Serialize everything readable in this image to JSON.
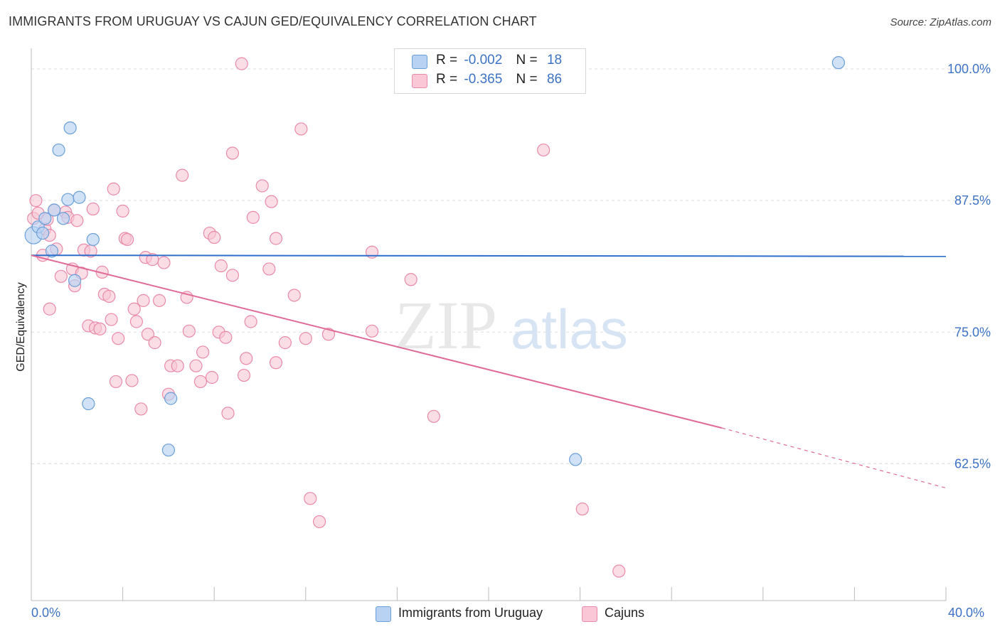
{
  "title": "IMMIGRANTS FROM URUGUAY VS CAJUN GED/EQUIVALENCY CORRELATION CHART",
  "source": "Source: ZipAtlas.com",
  "watermark": {
    "zip": "ZIP",
    "atlas": "atlas"
  },
  "legend": {
    "rows": [
      {
        "r_label": "R =",
        "r_value": "-0.002",
        "n_label": "N =",
        "n_value": "18"
      },
      {
        "r_label": "R =",
        "r_value": "-0.365",
        "n_label": "N =",
        "n_value": "86"
      }
    ]
  },
  "colors": {
    "uruguay_fill": "#b8d2f3",
    "uruguay_stroke": "#6a9fd8",
    "uruguay_line": "#2f6fcc",
    "cajun_fill": "#f9c7d6",
    "cajun_stroke": "#e98aa9",
    "cajun_line": "#e06a96",
    "axis_text": "#3d72c4",
    "grid": "#dedede"
  },
  "chart_data": {
    "type": "scatter",
    "title": "IMMIGRANTS FROM URUGUAY VS CAJUN GED/EQUIVALENCY CORRELATION CHART",
    "xlabel": "",
    "ylabel": "GED/Equivalency",
    "xlim": [
      0.0,
      40.0
    ],
    "ylim": [
      49.5,
      102.5
    ],
    "x_tick_labels": [
      "0.0%",
      "40.0%"
    ],
    "y_ticks": [
      62.5,
      75.0,
      87.5,
      100.0
    ],
    "y_tick_labels": [
      "62.5%",
      "75.0%",
      "87.5%",
      "100.0%"
    ],
    "grid": "horizontal dashed",
    "legend_position": "top-center",
    "series": [
      {
        "name": "Immigrants from Uruguay",
        "r": -0.002,
        "n": 18,
        "trend": {
          "x": [
            0.0,
            40.0
          ],
          "y": [
            82.3,
            82.2
          ],
          "style": "solid"
        },
        "points": [
          {
            "x": 0.1,
            "y": 84.2,
            "big": true
          },
          {
            "x": 0.3,
            "y": 85.0
          },
          {
            "x": 0.5,
            "y": 84.4
          },
          {
            "x": 0.6,
            "y": 85.8
          },
          {
            "x": 0.9,
            "y": 82.7
          },
          {
            "x": 1.0,
            "y": 86.6
          },
          {
            "x": 1.2,
            "y": 92.3
          },
          {
            "x": 1.4,
            "y": 85.8
          },
          {
            "x": 1.6,
            "y": 87.6
          },
          {
            "x": 1.7,
            "y": 94.4
          },
          {
            "x": 1.9,
            "y": 79.9
          },
          {
            "x": 2.1,
            "y": 87.8
          },
          {
            "x": 2.5,
            "y": 68.2
          },
          {
            "x": 2.7,
            "y": 83.8
          },
          {
            "x": 6.0,
            "y": 63.8
          },
          {
            "x": 6.1,
            "y": 68.7
          },
          {
            "x": 23.8,
            "y": 62.9
          },
          {
            "x": 35.3,
            "y": 100.6
          }
        ]
      },
      {
        "name": "Cajuns",
        "r": -0.365,
        "n": 86,
        "trend": {
          "x": [
            0.0,
            30.2
          ],
          "y": [
            82.3,
            65.9
          ],
          "style": "solid"
        },
        "trend_extension": {
          "x": [
            30.2,
            40.0
          ],
          "y": [
            65.9,
            60.2
          ],
          "style": "dashed"
        },
        "points": [
          {
            "x": 0.1,
            "y": 85.8
          },
          {
            "x": 0.2,
            "y": 87.5
          },
          {
            "x": 0.3,
            "y": 86.3
          },
          {
            "x": 0.5,
            "y": 82.3
          },
          {
            "x": 0.6,
            "y": 84.8
          },
          {
            "x": 0.7,
            "y": 85.7
          },
          {
            "x": 0.8,
            "y": 84.2
          },
          {
            "x": 0.8,
            "y": 77.2
          },
          {
            "x": 1.0,
            "y": 86.6
          },
          {
            "x": 1.1,
            "y": 82.9
          },
          {
            "x": 1.3,
            "y": 80.3
          },
          {
            "x": 1.5,
            "y": 86.4
          },
          {
            "x": 1.6,
            "y": 85.9
          },
          {
            "x": 1.8,
            "y": 81.0
          },
          {
            "x": 1.9,
            "y": 79.4
          },
          {
            "x": 2.0,
            "y": 85.6
          },
          {
            "x": 2.2,
            "y": 80.6
          },
          {
            "x": 2.3,
            "y": 82.8
          },
          {
            "x": 2.5,
            "y": 75.6
          },
          {
            "x": 2.6,
            "y": 82.7
          },
          {
            "x": 2.7,
            "y": 86.7
          },
          {
            "x": 2.8,
            "y": 75.4
          },
          {
            "x": 3.0,
            "y": 75.3
          },
          {
            "x": 3.1,
            "y": 80.7
          },
          {
            "x": 3.2,
            "y": 78.6
          },
          {
            "x": 3.4,
            "y": 78.4
          },
          {
            "x": 3.5,
            "y": 76.2
          },
          {
            "x": 3.6,
            "y": 88.6
          },
          {
            "x": 3.7,
            "y": 70.3
          },
          {
            "x": 3.8,
            "y": 74.4
          },
          {
            "x": 4.0,
            "y": 86.5
          },
          {
            "x": 4.1,
            "y": 83.9
          },
          {
            "x": 4.2,
            "y": 83.8
          },
          {
            "x": 4.4,
            "y": 70.4
          },
          {
            "x": 4.5,
            "y": 77.2
          },
          {
            "x": 4.6,
            "y": 76.0
          },
          {
            "x": 4.8,
            "y": 67.7
          },
          {
            "x": 4.9,
            "y": 78.0
          },
          {
            "x": 5.0,
            "y": 82.1
          },
          {
            "x": 5.1,
            "y": 74.8
          },
          {
            "x": 5.3,
            "y": 81.9
          },
          {
            "x": 5.4,
            "y": 74.0
          },
          {
            "x": 5.6,
            "y": 78.0
          },
          {
            "x": 5.8,
            "y": 81.6
          },
          {
            "x": 6.0,
            "y": 69.1
          },
          {
            "x": 6.1,
            "y": 71.8
          },
          {
            "x": 6.4,
            "y": 71.8
          },
          {
            "x": 6.6,
            "y": 89.9
          },
          {
            "x": 6.8,
            "y": 78.3
          },
          {
            "x": 6.9,
            "y": 75.1
          },
          {
            "x": 7.2,
            "y": 71.8
          },
          {
            "x": 7.4,
            "y": 70.3
          },
          {
            "x": 7.5,
            "y": 73.1
          },
          {
            "x": 7.8,
            "y": 84.4
          },
          {
            "x": 7.9,
            "y": 70.7
          },
          {
            "x": 8.0,
            "y": 84.0
          },
          {
            "x": 8.2,
            "y": 75.0
          },
          {
            "x": 8.3,
            "y": 81.3
          },
          {
            "x": 8.5,
            "y": 74.5
          },
          {
            "x": 8.6,
            "y": 67.3
          },
          {
            "x": 8.8,
            "y": 92.0
          },
          {
            "x": 8.8,
            "y": 80.4
          },
          {
            "x": 9.2,
            "y": 100.5
          },
          {
            "x": 9.3,
            "y": 70.9
          },
          {
            "x": 9.4,
            "y": 72.5
          },
          {
            "x": 9.6,
            "y": 76.0
          },
          {
            "x": 9.7,
            "y": 85.9
          },
          {
            "x": 10.1,
            "y": 88.9
          },
          {
            "x": 10.4,
            "y": 81.0
          },
          {
            "x": 10.5,
            "y": 87.4
          },
          {
            "x": 10.7,
            "y": 72.1
          },
          {
            "x": 10.7,
            "y": 83.9
          },
          {
            "x": 11.1,
            "y": 74.0
          },
          {
            "x": 11.5,
            "y": 78.5
          },
          {
            "x": 11.8,
            "y": 94.3
          },
          {
            "x": 12.0,
            "y": 74.4
          },
          {
            "x": 12.2,
            "y": 59.2
          },
          {
            "x": 12.6,
            "y": 57.0
          },
          {
            "x": 13.0,
            "y": 74.8
          },
          {
            "x": 14.9,
            "y": 75.1
          },
          {
            "x": 14.9,
            "y": 82.6
          },
          {
            "x": 16.6,
            "y": 80.0
          },
          {
            "x": 17.6,
            "y": 67.0
          },
          {
            "x": 22.4,
            "y": 92.3
          },
          {
            "x": 24.1,
            "y": 58.2
          },
          {
            "x": 25.7,
            "y": 52.3
          }
        ]
      }
    ]
  }
}
